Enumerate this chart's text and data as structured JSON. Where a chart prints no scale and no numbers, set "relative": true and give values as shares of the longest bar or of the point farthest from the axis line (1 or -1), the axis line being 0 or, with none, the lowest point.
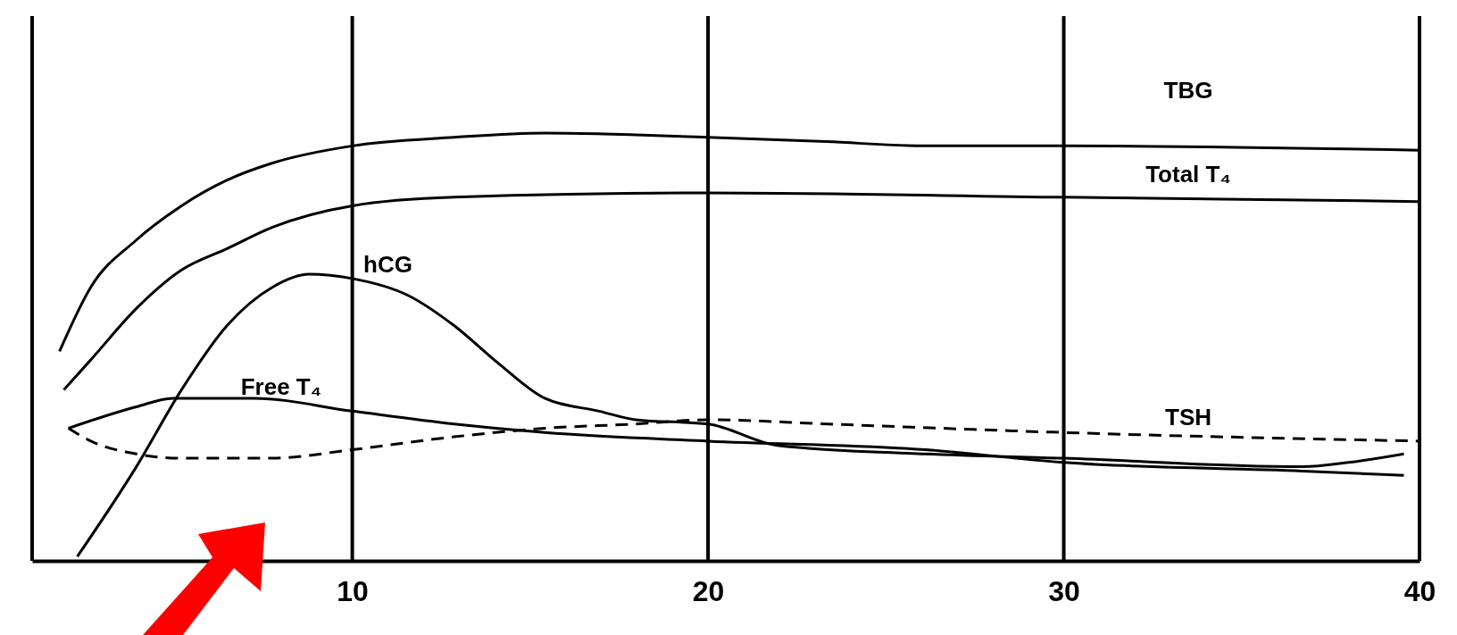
{
  "chart_data": {
    "type": "line",
    "relative": true,
    "grid": "x",
    "legend": false,
    "xlim": [
      1,
      40
    ],
    "xticks": [
      {
        "value": 1,
        "label": null
      },
      10,
      20,
      30,
      40
    ],
    "series": [
      {
        "name": "TBG",
        "color": "#000000",
        "line_style": "solid",
        "x": [
          1.77,
          2.65,
          3.93,
          5.2,
          6.48,
          7.76,
          10,
          12.86,
          15.41,
          20,
          23.33,
          26.11,
          30,
          40
        ],
        "values": [
          0.49,
          0.64,
          0.75,
          0.83,
          0.89,
          0.93,
          0.97,
          0.99,
          1.0,
          0.99,
          0.98,
          0.97,
          0.97,
          0.96
        ]
      },
      {
        "name": "Total T₄",
        "color": "#000000",
        "line_style": "solid",
        "x": [
          1.89,
          2.65,
          3.93,
          5.2,
          6.48,
          7.76,
          10,
          12.86,
          20,
          30,
          40
        ],
        "values": [
          0.4,
          0.47,
          0.59,
          0.68,
          0.73,
          0.78,
          0.83,
          0.85,
          0.86,
          0.85,
          0.84
        ]
      },
      {
        "name": "hCG",
        "color": "#000000",
        "line_style": "solid",
        "x": [
          2.27,
          3.93,
          5.2,
          6.48,
          7.76,
          8.78,
          10,
          11.58,
          12.86,
          14.13,
          15.41,
          16.94,
          17.96,
          20,
          21.94,
          26.11,
          30,
          36.72,
          38.0,
          39.56
        ],
        "values": [
          0.01,
          0.22,
          0.4,
          0.55,
          0.64,
          0.67,
          0.66,
          0.62,
          0.55,
          0.46,
          0.38,
          0.35,
          0.33,
          0.32,
          0.27,
          0.25,
          0.24,
          0.22,
          0.23,
          0.25
        ]
      },
      {
        "name": "Free T₄",
        "color": "#000000",
        "line_style": "solid",
        "x": [
          2.02,
          3.93,
          4.95,
          7.24,
          10,
          12.86,
          15.41,
          20,
          26.11,
          30,
          36.72,
          39.56
        ],
        "values": [
          0.31,
          0.36,
          0.38,
          0.38,
          0.35,
          0.32,
          0.3,
          0.28,
          0.26,
          0.23,
          0.21,
          0.2
        ]
      },
      {
        "name": "TSH",
        "color": "#000000",
        "line_style": "dashed",
        "x": [
          2.02,
          2.65,
          3.93,
          5.2,
          7.76,
          10,
          12.86,
          15.41,
          17.96,
          20,
          23.33,
          30,
          40
        ],
        "values": [
          0.31,
          0.28,
          0.25,
          0.24,
          0.24,
          0.26,
          0.29,
          0.31,
          0.32,
          0.33,
          0.32,
          0.3,
          0.28
        ]
      }
    ]
  }
}
